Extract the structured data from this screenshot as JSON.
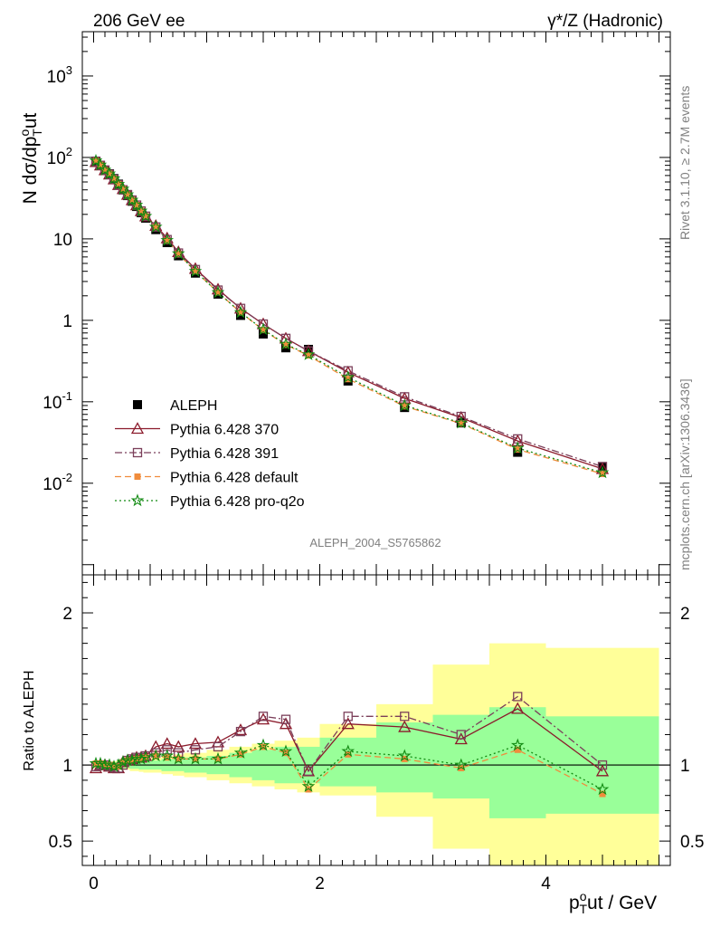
{
  "header": {
    "left": "206 GeV ee",
    "right": "γ*/Z (Hadronic)"
  },
  "side_text": {
    "rivet": "Rivet 3.1.10, ≥ 2.7M events",
    "mcplots": "mcplots.cern.ch [arXiv:1306.3436]"
  },
  "analysis_id": "ALEPH_2004_S5765862",
  "colors": {
    "data": "#000000",
    "p370": "#8b1a2b",
    "p391": "#7b3f5a",
    "pdefault": "#f08c3c",
    "pq2o": "#118a11",
    "band_inner": "#99ff99",
    "band_outer": "#ffff99"
  },
  "chart_data": [
    {
      "type": "scatter",
      "panel": "main",
      "yscale": "log",
      "ylabel": "N dσ/dp_T^out",
      "xlim": [
        -0.1,
        5.1
      ],
      "ylim": [
        0.00075,
        3500
      ],
      "y_ticks": [
        "10^-2",
        "10^-1",
        "1",
        "10",
        "10^2",
        "10^3"
      ],
      "legend_position": "bottom-left",
      "x": [
        0.02,
        0.06,
        0.1,
        0.14,
        0.18,
        0.22,
        0.26,
        0.3,
        0.34,
        0.38,
        0.42,
        0.46,
        0.55,
        0.65,
        0.75,
        0.9,
        1.1,
        1.3,
        1.5,
        1.7,
        1.9,
        2.25,
        2.75,
        3.25,
        3.75,
        4.5
      ],
      "series": [
        {
          "name": "ALEPH",
          "marker": "square",
          "values": [
            90,
            80,
            70,
            63,
            55,
            47,
            40,
            34,
            29,
            25,
            21,
            18,
            13,
            9,
            6.2,
            3.8,
            2.1,
            1.15,
            0.68,
            0.46,
            0.44,
            0.18,
            0.085,
            0.055,
            0.024,
            0.016
          ]
        },
        {
          "name": "Pythia 6.428 370",
          "marker": "triangle",
          "values": [
            88,
            80,
            70,
            62,
            54,
            46,
            41,
            35,
            30,
            26,
            22,
            19,
            14.5,
            10.2,
            6.9,
            4.3,
            2.4,
            1.4,
            0.9,
            0.6,
            0.42,
            0.23,
            0.11,
            0.064,
            0.033,
            0.015
          ]
        },
        {
          "name": "Pythia 6.428 391",
          "marker": "open-square",
          "values": [
            89,
            80,
            70,
            62,
            54,
            46,
            40,
            35,
            30,
            26,
            22,
            19,
            14,
            9.8,
            6.7,
            4.2,
            2.35,
            1.4,
            0.9,
            0.6,
            0.42,
            0.24,
            0.115,
            0.066,
            0.035,
            0.016
          ]
        },
        {
          "name": "Pythia 6.428 default",
          "marker": "filled-square",
          "values": [
            91,
            81,
            70,
            63,
            55,
            47,
            41,
            35,
            30,
            26,
            22,
            19,
            14,
            9.5,
            6.5,
            4.0,
            2.2,
            1.25,
            0.76,
            0.5,
            0.37,
            0.19,
            0.088,
            0.054,
            0.026,
            0.013
          ]
        },
        {
          "name": "Pythia 6.428 pro-q2o",
          "marker": "star",
          "values": [
            91,
            81,
            70,
            63,
            55,
            47,
            41,
            35,
            30,
            26,
            22,
            19,
            14,
            9.6,
            6.6,
            4.0,
            2.2,
            1.25,
            0.77,
            0.51,
            0.38,
            0.2,
            0.09,
            0.055,
            0.027,
            0.0135
          ]
        }
      ]
    },
    {
      "type": "line",
      "panel": "ratio",
      "xlabel": "p_T^out / GeV",
      "ylabel": "Ratio to ALEPH",
      "xlim": [
        -0.1,
        5.1
      ],
      "ylim": [
        0.34,
        2.25
      ],
      "x_ticks": [
        "0",
        "2",
        "4"
      ],
      "y_ticks": [
        "0.5",
        "1",
        "2"
      ],
      "x": [
        0.02,
        0.06,
        0.1,
        0.14,
        0.18,
        0.22,
        0.26,
        0.3,
        0.34,
        0.38,
        0.42,
        0.46,
        0.55,
        0.65,
        0.75,
        0.9,
        1.1,
        1.3,
        1.5,
        1.7,
        1.9,
        2.25,
        2.75,
        3.25,
        3.75,
        4.5
      ],
      "bins": [
        0,
        0.04,
        0.08,
        0.12,
        0.16,
        0.2,
        0.24,
        0.28,
        0.32,
        0.36,
        0.4,
        0.44,
        0.48,
        0.6,
        0.7,
        0.8,
        1.0,
        1.2,
        1.4,
        1.6,
        1.8,
        2.0,
        2.5,
        3.0,
        3.5,
        4.0,
        5.0
      ],
      "band_inner": [
        [
          0.99,
          1.01
        ],
        [
          0.99,
          1.01
        ],
        [
          0.99,
          1.01
        ],
        [
          0.99,
          1.01
        ],
        [
          0.985,
          1.015
        ],
        [
          0.98,
          1.02
        ],
        [
          0.98,
          1.02
        ],
        [
          0.98,
          1.02
        ],
        [
          0.975,
          1.025
        ],
        [
          0.975,
          1.025
        ],
        [
          0.97,
          1.03
        ],
        [
          0.97,
          1.03
        ],
        [
          0.97,
          1.03
        ],
        [
          0.96,
          1.04
        ],
        [
          0.96,
          1.04
        ],
        [
          0.95,
          1.05
        ],
        [
          0.94,
          1.06
        ],
        [
          0.92,
          1.08
        ],
        [
          0.9,
          1.1
        ],
        [
          0.88,
          1.12
        ],
        [
          0.88,
          1.12
        ],
        [
          0.86,
          1.18
        ],
        [
          0.82,
          1.28
        ],
        [
          0.78,
          1.33
        ],
        [
          0.65,
          1.38
        ],
        [
          0.68,
          1.32
        ]
      ],
      "band_outer": [
        [
          0.98,
          1.02
        ],
        [
          0.98,
          1.02
        ],
        [
          0.98,
          1.02
        ],
        [
          0.98,
          1.02
        ],
        [
          0.975,
          1.025
        ],
        [
          0.97,
          1.03
        ],
        [
          0.97,
          1.03
        ],
        [
          0.97,
          1.03
        ],
        [
          0.96,
          1.04
        ],
        [
          0.96,
          1.04
        ],
        [
          0.955,
          1.045
        ],
        [
          0.95,
          1.05
        ],
        [
          0.95,
          1.05
        ],
        [
          0.94,
          1.06
        ],
        [
          0.93,
          1.07
        ],
        [
          0.92,
          1.08
        ],
        [
          0.9,
          1.1
        ],
        [
          0.88,
          1.12
        ],
        [
          0.86,
          1.14
        ],
        [
          0.84,
          1.16
        ],
        [
          0.82,
          1.18
        ],
        [
          0.8,
          1.27
        ],
        [
          0.66,
          1.4
        ],
        [
          0.45,
          1.66
        ],
        [
          0.3,
          1.8
        ],
        [
          0.3,
          1.77
        ]
      ],
      "series": [
        {
          "name": "Pythia 6.428 370",
          "values": [
            0.98,
            1.0,
            1.0,
            0.99,
            0.98,
            0.98,
            1.02,
            1.03,
            1.04,
            1.05,
            1.05,
            1.06,
            1.12,
            1.14,
            1.12,
            1.14,
            1.15,
            1.23,
            1.3,
            1.27,
            0.96,
            1.27,
            1.25,
            1.17,
            1.37,
            0.96
          ]
        },
        {
          "name": "Pythia 6.428 391",
          "values": [
            0.99,
            1.0,
            1.0,
            0.99,
            0.98,
            0.98,
            1.0,
            1.03,
            1.04,
            1.05,
            1.05,
            1.06,
            1.08,
            1.1,
            1.08,
            1.1,
            1.12,
            1.22,
            1.32,
            1.3,
            0.96,
            1.32,
            1.32,
            1.2,
            1.45,
            1.0
          ]
        },
        {
          "name": "Pythia 6.428 default",
          "values": [
            1.01,
            1.01,
            1.0,
            1.0,
            0.99,
            0.99,
            1.02,
            1.03,
            1.03,
            1.04,
            1.04,
            1.05,
            1.06,
            1.05,
            1.04,
            1.04,
            1.04,
            1.07,
            1.12,
            1.08,
            0.84,
            1.07,
            1.04,
            0.98,
            1.1,
            0.81
          ]
        },
        {
          "name": "Pythia 6.428 pro-q2o",
          "values": [
            1.01,
            1.01,
            1.0,
            1.0,
            0.99,
            1.0,
            1.02,
            1.03,
            1.03,
            1.04,
            1.04,
            1.05,
            1.06,
            1.06,
            1.04,
            1.04,
            1.04,
            1.08,
            1.13,
            1.09,
            0.86,
            1.09,
            1.06,
            1.0,
            1.13,
            0.84
          ]
        }
      ]
    }
  ]
}
